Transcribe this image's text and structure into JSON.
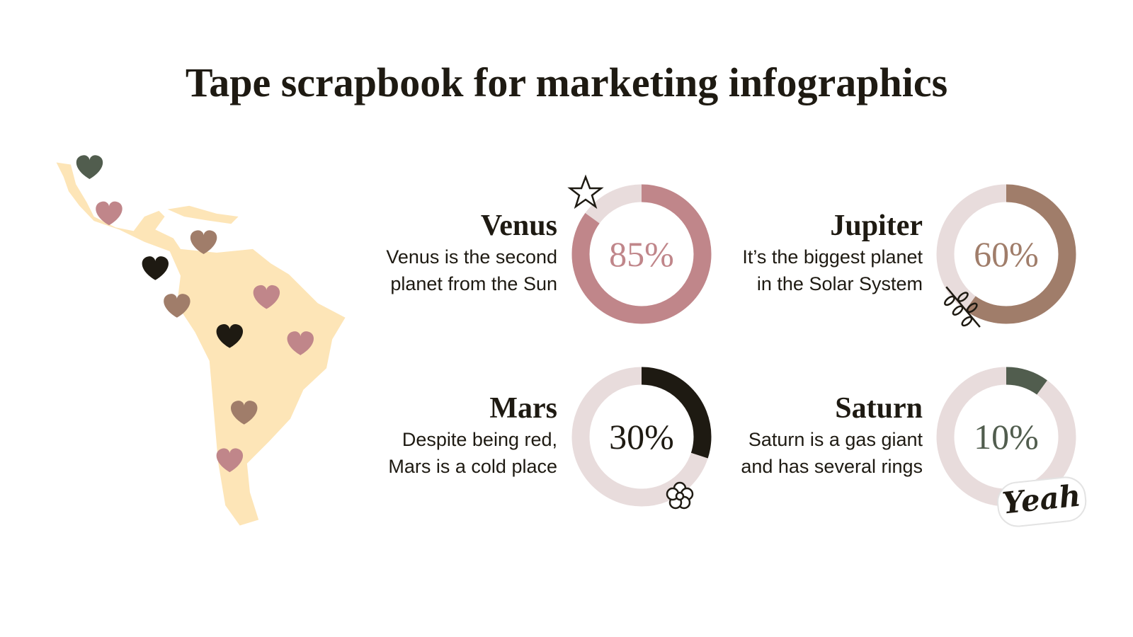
{
  "title": "Tape scrapbook for marketing infographics",
  "sticker": "Yeah",
  "chart_data": [
    {
      "type": "donut",
      "title": "Venus",
      "description": [
        "Venus is the second",
        "planet from the Sun"
      ],
      "values": [
        85
      ],
      "value_labels": [
        "85%"
      ],
      "color": "#c0868a",
      "track_color": "#e8dcdc"
    },
    {
      "type": "donut",
      "title": "Jupiter",
      "description": [
        "It’s the biggest planet",
        "in the Solar System"
      ],
      "values": [
        60
      ],
      "value_labels": [
        "60%"
      ],
      "color": "#a07d6a",
      "track_color": "#e8dcdc"
    },
    {
      "type": "donut",
      "title": "Mars",
      "description": [
        "Despite being red,",
        "Mars is a cold place"
      ],
      "values": [
        30
      ],
      "value_labels": [
        "30%"
      ],
      "color": "#1e1a12",
      "track_color": "#e8dcdc"
    },
    {
      "type": "donut",
      "title": "Saturn",
      "description": [
        "Saturn is a gas giant",
        "and has several rings"
      ],
      "values": [
        10
      ],
      "value_labels": [
        "10%"
      ],
      "color": "#515d4e",
      "track_color": "#e8dcdc"
    }
  ]
}
